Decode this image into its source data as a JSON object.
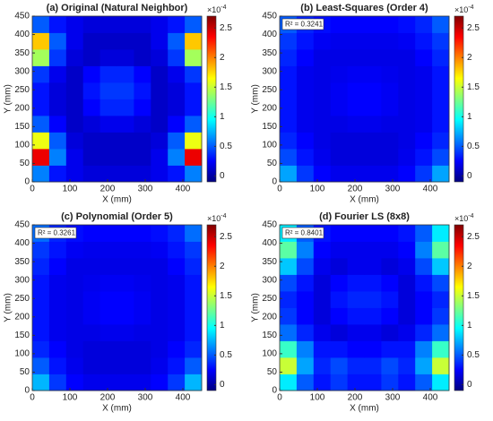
{
  "chart_data": [
    {
      "type": "heatmap",
      "title": "(a) Original (Natural Neighbor)",
      "xlabel": "X (mm)",
      "ylabel": "Y (mm)",
      "colormap": "jet",
      "colorbar_scale": "×10",
      "colorbar_exponent": "-4",
      "xlim": [
        0,
        450
      ],
      "ylim": [
        0,
        450
      ],
      "xticks": [
        0,
        100,
        200,
        300,
        400
      ],
      "yticks": [
        0,
        50,
        100,
        150,
        200,
        250,
        300,
        350,
        400,
        450
      ],
      "clim": [
        -0.1,
        2.7
      ],
      "cticks": [
        0,
        0.5,
        1,
        1.5,
        2,
        2.5
      ],
      "xbins": [
        0,
        45,
        90,
        135,
        180,
        225,
        270,
        315,
        360,
        405,
        450
      ],
      "ybins": [
        0,
        45,
        90,
        135,
        180,
        225,
        270,
        315,
        360,
        405,
        450
      ],
      "z": [
        [
          0.6,
          0.3,
          0.2,
          0.15,
          0.15,
          0.15,
          0.15,
          0.2,
          0.3,
          0.6
        ],
        [
          2.4,
          0.6,
          0.2,
          0.1,
          0.1,
          0.1,
          0.1,
          0.2,
          0.6,
          2.4
        ],
        [
          1.6,
          0.5,
          0.15,
          0.1,
          0.1,
          0.1,
          0.1,
          0.15,
          0.5,
          1.6
        ],
        [
          0.5,
          0.25,
          0.1,
          0.15,
          0.2,
          0.2,
          0.15,
          0.1,
          0.25,
          0.5
        ],
        [
          0.3,
          0.15,
          0.1,
          0.25,
          0.35,
          0.35,
          0.25,
          0.1,
          0.15,
          0.3
        ],
        [
          0.3,
          0.15,
          0.1,
          0.3,
          0.4,
          0.4,
          0.3,
          0.1,
          0.15,
          0.3
        ],
        [
          0.4,
          0.2,
          0.1,
          0.25,
          0.35,
          0.35,
          0.25,
          0.1,
          0.2,
          0.4
        ],
        [
          1.4,
          0.4,
          0.15,
          0.1,
          0.15,
          0.15,
          0.1,
          0.15,
          0.4,
          1.4
        ],
        [
          1.8,
          0.5,
          0.2,
          0.1,
          0.1,
          0.1,
          0.1,
          0.2,
          0.5,
          1.8
        ],
        [
          0.5,
          0.3,
          0.2,
          0.15,
          0.15,
          0.15,
          0.15,
          0.2,
          0.3,
          0.5
        ]
      ]
    },
    {
      "type": "heatmap",
      "title": "(b) Least-Squares (Order 4)",
      "xlabel": "X (mm)",
      "ylabel": "Y (mm)",
      "annotation": "R² = 0.3241",
      "colormap": "jet",
      "colorbar_scale": "×10",
      "colorbar_exponent": "-4",
      "xlim": [
        0,
        450
      ],
      "ylim": [
        0,
        450
      ],
      "xticks": [
        0,
        100,
        200,
        300,
        400
      ],
      "yticks": [
        0,
        50,
        100,
        150,
        200,
        250,
        300,
        350,
        400,
        450
      ],
      "clim": [
        -0.1,
        2.7
      ],
      "cticks": [
        0,
        0.5,
        1,
        1.5,
        2,
        2.5
      ],
      "xbins": [
        0,
        45,
        90,
        135,
        180,
        225,
        270,
        315,
        360,
        405,
        450
      ],
      "ybins": [
        0,
        45,
        90,
        135,
        180,
        225,
        270,
        315,
        360,
        405,
        450
      ],
      "z": [
        [
          0.7,
          0.4,
          0.25,
          0.2,
          0.2,
          0.2,
          0.2,
          0.25,
          0.4,
          0.7
        ],
        [
          0.45,
          0.3,
          0.2,
          0.15,
          0.15,
          0.15,
          0.15,
          0.2,
          0.3,
          0.45
        ],
        [
          0.35,
          0.25,
          0.18,
          0.15,
          0.15,
          0.15,
          0.15,
          0.18,
          0.25,
          0.35
        ],
        [
          0.3,
          0.2,
          0.18,
          0.18,
          0.2,
          0.2,
          0.18,
          0.18,
          0.2,
          0.3
        ],
        [
          0.3,
          0.2,
          0.18,
          0.22,
          0.25,
          0.25,
          0.22,
          0.18,
          0.2,
          0.3
        ],
        [
          0.3,
          0.2,
          0.18,
          0.22,
          0.25,
          0.25,
          0.22,
          0.18,
          0.2,
          0.3
        ],
        [
          0.3,
          0.2,
          0.18,
          0.2,
          0.22,
          0.22,
          0.2,
          0.18,
          0.2,
          0.3
        ],
        [
          0.35,
          0.25,
          0.18,
          0.18,
          0.18,
          0.18,
          0.18,
          0.18,
          0.25,
          0.35
        ],
        [
          0.4,
          0.3,
          0.22,
          0.2,
          0.2,
          0.2,
          0.2,
          0.22,
          0.3,
          0.4
        ],
        [
          0.5,
          0.35,
          0.28,
          0.25,
          0.25,
          0.25,
          0.25,
          0.28,
          0.35,
          0.5
        ]
      ]
    },
    {
      "type": "heatmap",
      "title": "(c) Polynomial (Order 5)",
      "xlabel": "X (mm)",
      "ylabel": "Y (mm)",
      "annotation": "R² = 0.3261",
      "colormap": "jet",
      "colorbar_scale": "×10",
      "colorbar_exponent": "-4",
      "xlim": [
        0,
        450
      ],
      "ylim": [
        0,
        450
      ],
      "xticks": [
        0,
        100,
        200,
        300,
        400
      ],
      "yticks": [
        0,
        50,
        100,
        150,
        200,
        250,
        300,
        350,
        400,
        450
      ],
      "clim": [
        -0.1,
        2.7
      ],
      "cticks": [
        0,
        0.5,
        1,
        1.5,
        2,
        2.5
      ],
      "xbins": [
        0,
        45,
        90,
        135,
        180,
        225,
        270,
        315,
        360,
        405,
        450
      ],
      "ybins": [
        0,
        45,
        90,
        135,
        180,
        225,
        270,
        315,
        360,
        405,
        450
      ],
      "z": [
        [
          0.75,
          0.4,
          0.25,
          0.2,
          0.2,
          0.2,
          0.2,
          0.25,
          0.4,
          0.75
        ],
        [
          0.5,
          0.3,
          0.2,
          0.15,
          0.15,
          0.15,
          0.15,
          0.2,
          0.3,
          0.5
        ],
        [
          0.35,
          0.25,
          0.18,
          0.15,
          0.15,
          0.15,
          0.15,
          0.18,
          0.25,
          0.35
        ],
        [
          0.3,
          0.2,
          0.18,
          0.18,
          0.2,
          0.2,
          0.18,
          0.18,
          0.2,
          0.3
        ],
        [
          0.3,
          0.2,
          0.18,
          0.22,
          0.25,
          0.25,
          0.22,
          0.18,
          0.2,
          0.3
        ],
        [
          0.3,
          0.2,
          0.18,
          0.22,
          0.25,
          0.25,
          0.22,
          0.18,
          0.2,
          0.3
        ],
        [
          0.3,
          0.2,
          0.18,
          0.2,
          0.22,
          0.22,
          0.2,
          0.18,
          0.2,
          0.3
        ],
        [
          0.35,
          0.25,
          0.18,
          0.18,
          0.18,
          0.18,
          0.18,
          0.18,
          0.25,
          0.35
        ],
        [
          0.4,
          0.3,
          0.22,
          0.2,
          0.2,
          0.2,
          0.2,
          0.22,
          0.3,
          0.4
        ],
        [
          0.55,
          0.35,
          0.28,
          0.25,
          0.25,
          0.25,
          0.25,
          0.28,
          0.35,
          0.55
        ]
      ]
    },
    {
      "type": "heatmap",
      "title": "(d) Fourier LS (8x8)",
      "xlabel": "X (mm)",
      "ylabel": "Y (mm)",
      "annotation": "R² = 0.8401",
      "colormap": "jet",
      "colorbar_scale": "×10",
      "colorbar_exponent": "-4",
      "xlim": [
        0,
        450
      ],
      "ylim": [
        0,
        450
      ],
      "xticks": [
        0,
        100,
        200,
        300,
        400
      ],
      "yticks": [
        0,
        50,
        100,
        150,
        200,
        250,
        300,
        350,
        400,
        450
      ],
      "clim": [
        -0.1,
        2.7
      ],
      "cticks": [
        0,
        0.5,
        1,
        1.5,
        2,
        2.5
      ],
      "xbins": [
        0,
        45,
        90,
        135,
        180,
        225,
        270,
        315,
        360,
        405,
        450
      ],
      "ybins": [
        0,
        45,
        90,
        135,
        180,
        225,
        270,
        315,
        360,
        405,
        450
      ],
      "z": [
        [
          0.9,
          0.5,
          0.3,
          0.4,
          0.3,
          0.3,
          0.4,
          0.3,
          0.5,
          0.9
        ],
        [
          1.5,
          0.7,
          0.35,
          0.45,
          0.35,
          0.35,
          0.45,
          0.35,
          0.7,
          1.5
        ],
        [
          1.1,
          0.6,
          0.3,
          0.3,
          0.25,
          0.25,
          0.3,
          0.3,
          0.6,
          1.1
        ],
        [
          0.55,
          0.35,
          0.2,
          0.15,
          0.2,
          0.2,
          0.15,
          0.2,
          0.35,
          0.55
        ],
        [
          0.4,
          0.25,
          0.15,
          0.25,
          0.3,
          0.3,
          0.25,
          0.15,
          0.25,
          0.4
        ],
        [
          0.35,
          0.25,
          0.15,
          0.3,
          0.35,
          0.35,
          0.3,
          0.15,
          0.25,
          0.35
        ],
        [
          0.45,
          0.3,
          0.15,
          0.25,
          0.3,
          0.3,
          0.25,
          0.15,
          0.3,
          0.45
        ],
        [
          0.8,
          0.45,
          0.2,
          0.15,
          0.2,
          0.2,
          0.15,
          0.2,
          0.45,
          0.8
        ],
        [
          1.2,
          0.6,
          0.25,
          0.2,
          0.2,
          0.2,
          0.2,
          0.25,
          0.6,
          1.2
        ],
        [
          0.9,
          0.5,
          0.3,
          0.25,
          0.25,
          0.25,
          0.25,
          0.3,
          0.5,
          0.9
        ]
      ]
    }
  ]
}
